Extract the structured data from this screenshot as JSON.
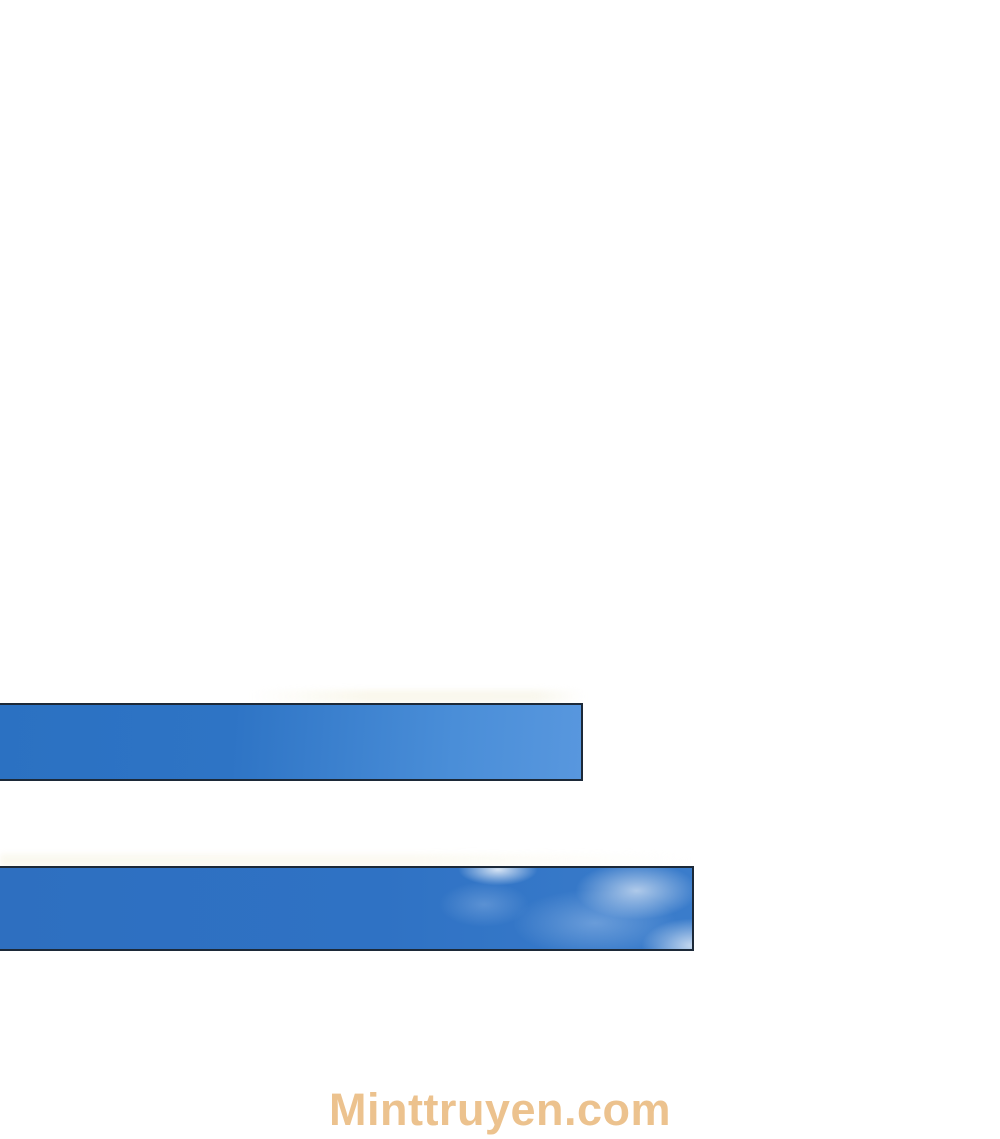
{
  "page": {
    "background_color": "#ffffff"
  },
  "panels": {
    "top": {
      "type": "sky-photo",
      "border_color": "#1c2938",
      "sky_color_left": "#2b71c2",
      "sky_color_right": "#5897de"
    },
    "bottom": {
      "type": "sky-photo-with-clouds",
      "border_color": "#1c2938",
      "sky_color_left": "#2e6fc0",
      "sky_color_right": "#3a7ccb",
      "cloud_color": "#ffffff"
    }
  },
  "watermark": {
    "text": "Minttruyen.com",
    "color": "#ecc28e"
  }
}
